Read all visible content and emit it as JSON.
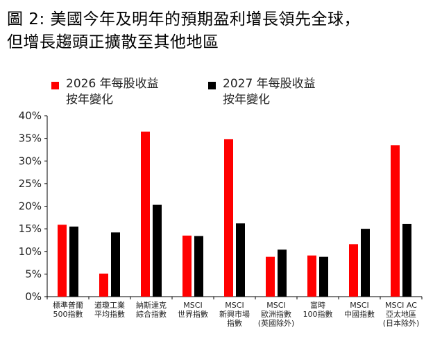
{
  "title": {
    "line1": "圖 2: 美國今年及明年的預期盈利增長領先全球，",
    "line2": "但增長趨頭正擴散至其他地區"
  },
  "colors": {
    "series_2026": "#ff0000",
    "series_2027": "#000000",
    "axis": "#000000",
    "text": "#222222"
  },
  "chart_data": {
    "type": "bar",
    "legend_position": "top",
    "grid": false,
    "ylim": [
      0,
      40
    ],
    "yticks": [
      "0%",
      "5%",
      "10%",
      "15%",
      "20%",
      "25%",
      "30%",
      "35%",
      "40%"
    ],
    "categories": [
      [
        "標準普爾",
        "500指數"
      ],
      [
        "道瓊工業",
        "平均指數"
      ],
      [
        "納斯達克",
        "綜合指數"
      ],
      [
        "MSCI",
        "世界指數"
      ],
      [
        "MSCI",
        "新興市場",
        "指數"
      ],
      [
        "MSCI",
        "歐洲指數",
        "(英國除外)"
      ],
      [
        "富時",
        "100指數"
      ],
      [
        "MSCI",
        "中國指數"
      ],
      [
        "MSCI AC",
        "亞太地區",
        "(日本除外)"
      ]
    ],
    "series": [
      {
        "name": "2026 年每股收益 按年變化",
        "name_lines": [
          "2026 年每股收益",
          "按年變化"
        ],
        "values": [
          15.9,
          5.1,
          36.5,
          13.5,
          34.8,
          8.8,
          9.1,
          11.6,
          33.5
        ]
      },
      {
        "name": "2027 年每股收益 按年變化",
        "name_lines": [
          "2027 年每股收益",
          "按年變化"
        ],
        "values": [
          15.5,
          14.2,
          20.3,
          13.4,
          16.2,
          10.4,
          8.8,
          15.0,
          16.1
        ]
      }
    ]
  }
}
